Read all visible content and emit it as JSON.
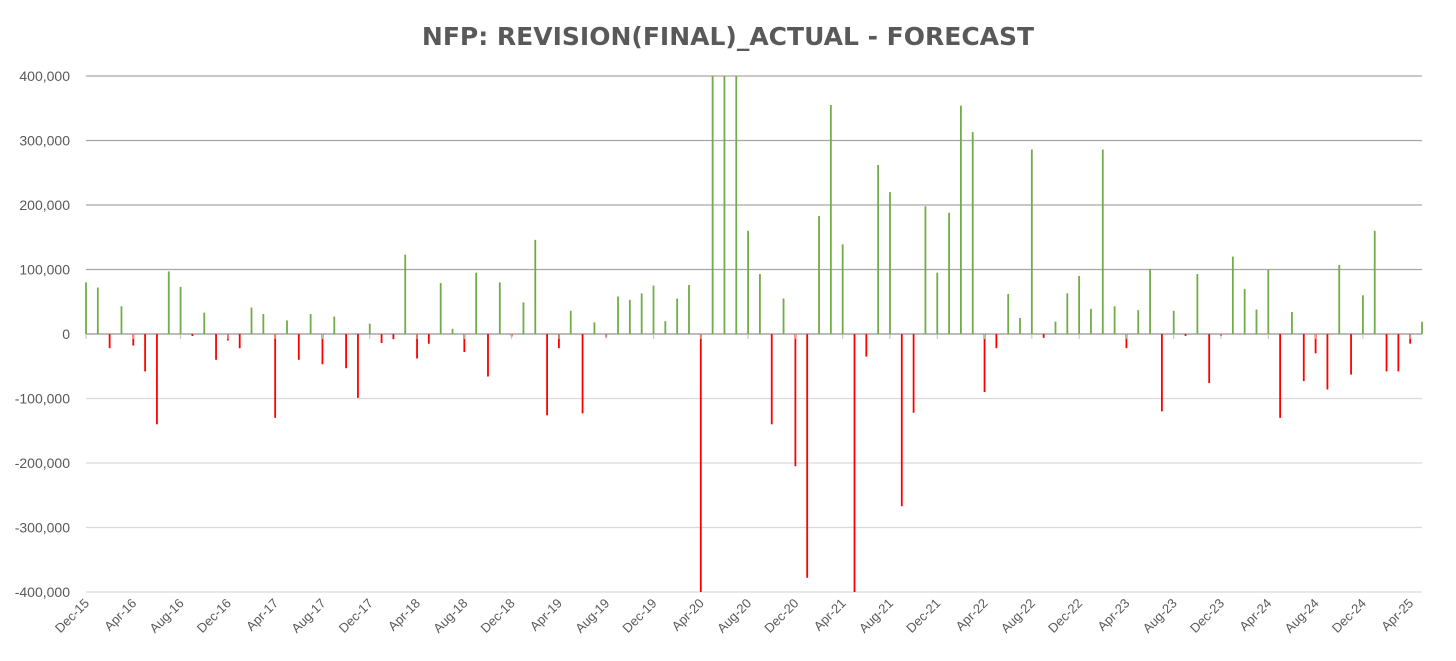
{
  "chart_data": {
    "type": "bar",
    "title": "NFP: REVISION(FINAL)_ACTUAL - FORECAST",
    "xlabel": "",
    "ylabel": "",
    "ylim": [
      -400000,
      400000
    ],
    "yticks": [
      400000,
      300000,
      200000,
      100000,
      0,
      -100000,
      -200000,
      -300000,
      -400000
    ],
    "ytick_labels": [
      "400,000",
      "300,000",
      "200,000",
      "100,000",
      "0",
      "-100,000",
      "-200,000",
      "-300,000",
      "-400,000"
    ],
    "start_month": "Dec-15",
    "end_month": "May-25",
    "xtick_labels": [
      "Dec-15",
      "Apr-16",
      "Aug-16",
      "Dec-16",
      "Apr-17",
      "Aug-17",
      "Dec-17",
      "Apr-18",
      "Aug-18",
      "Dec-18",
      "Apr-19",
      "Aug-19",
      "Dec-19",
      "Apr-20",
      "Aug-20",
      "Dec-20",
      "Apr-21",
      "Aug-21",
      "Dec-21",
      "Apr-22",
      "Aug-22",
      "Dec-22",
      "Apr-23",
      "Aug-23",
      "Dec-23",
      "Apr-24",
      "Aug-24",
      "Dec-24",
      "Apr-25"
    ],
    "xtick_every_months": 4,
    "grid": true,
    "colors": {
      "positive": "#70AD47",
      "negative": "#FF0000",
      "grid_upper": "#A6A6A6",
      "grid_lower": "#D9D9D9"
    },
    "values": [
      80000,
      72000,
      -22000,
      43000,
      -18000,
      -58000,
      -140000,
      97000,
      73000,
      -3000,
      33000,
      -40000,
      -10000,
      -22000,
      41000,
      31000,
      -130000,
      21000,
      -40000,
      31000,
      -47000,
      27000,
      -53000,
      -99000,
      16000,
      -14000,
      -8000,
      123000,
      -38000,
      -15000,
      79000,
      8000,
      -28000,
      95000,
      -66000,
      80000,
      -4000,
      49000,
      146000,
      -126000,
      -22000,
      36000,
      -123000,
      18000,
      -5000,
      58000,
      53000,
      63000,
      75000,
      20000,
      55000,
      76000,
      -400000,
      400000,
      400000,
      400000,
      160000,
      93000,
      -140000,
      55000,
      -205000,
      -378000,
      183000,
      355000,
      139000,
      -400000,
      -35000,
      262000,
      220000,
      -267000,
      -122000,
      198000,
      95000,
      188000,
      354000,
      313000,
      -90000,
      -22000,
      62000,
      25000,
      286000,
      -6000,
      19000,
      63000,
      90000,
      39000,
      286000,
      43000,
      -22000,
      37000,
      101000,
      -120000,
      36000,
      -3000,
      93000,
      -76000,
      -3000,
      120000,
      70000,
      38000,
      100000,
      -130000,
      34000,
      -73000,
      -30000,
      -86000,
      107000,
      -63000,
      60000,
      160000,
      -58000,
      -58000,
      -15000,
      19000
    ]
  }
}
